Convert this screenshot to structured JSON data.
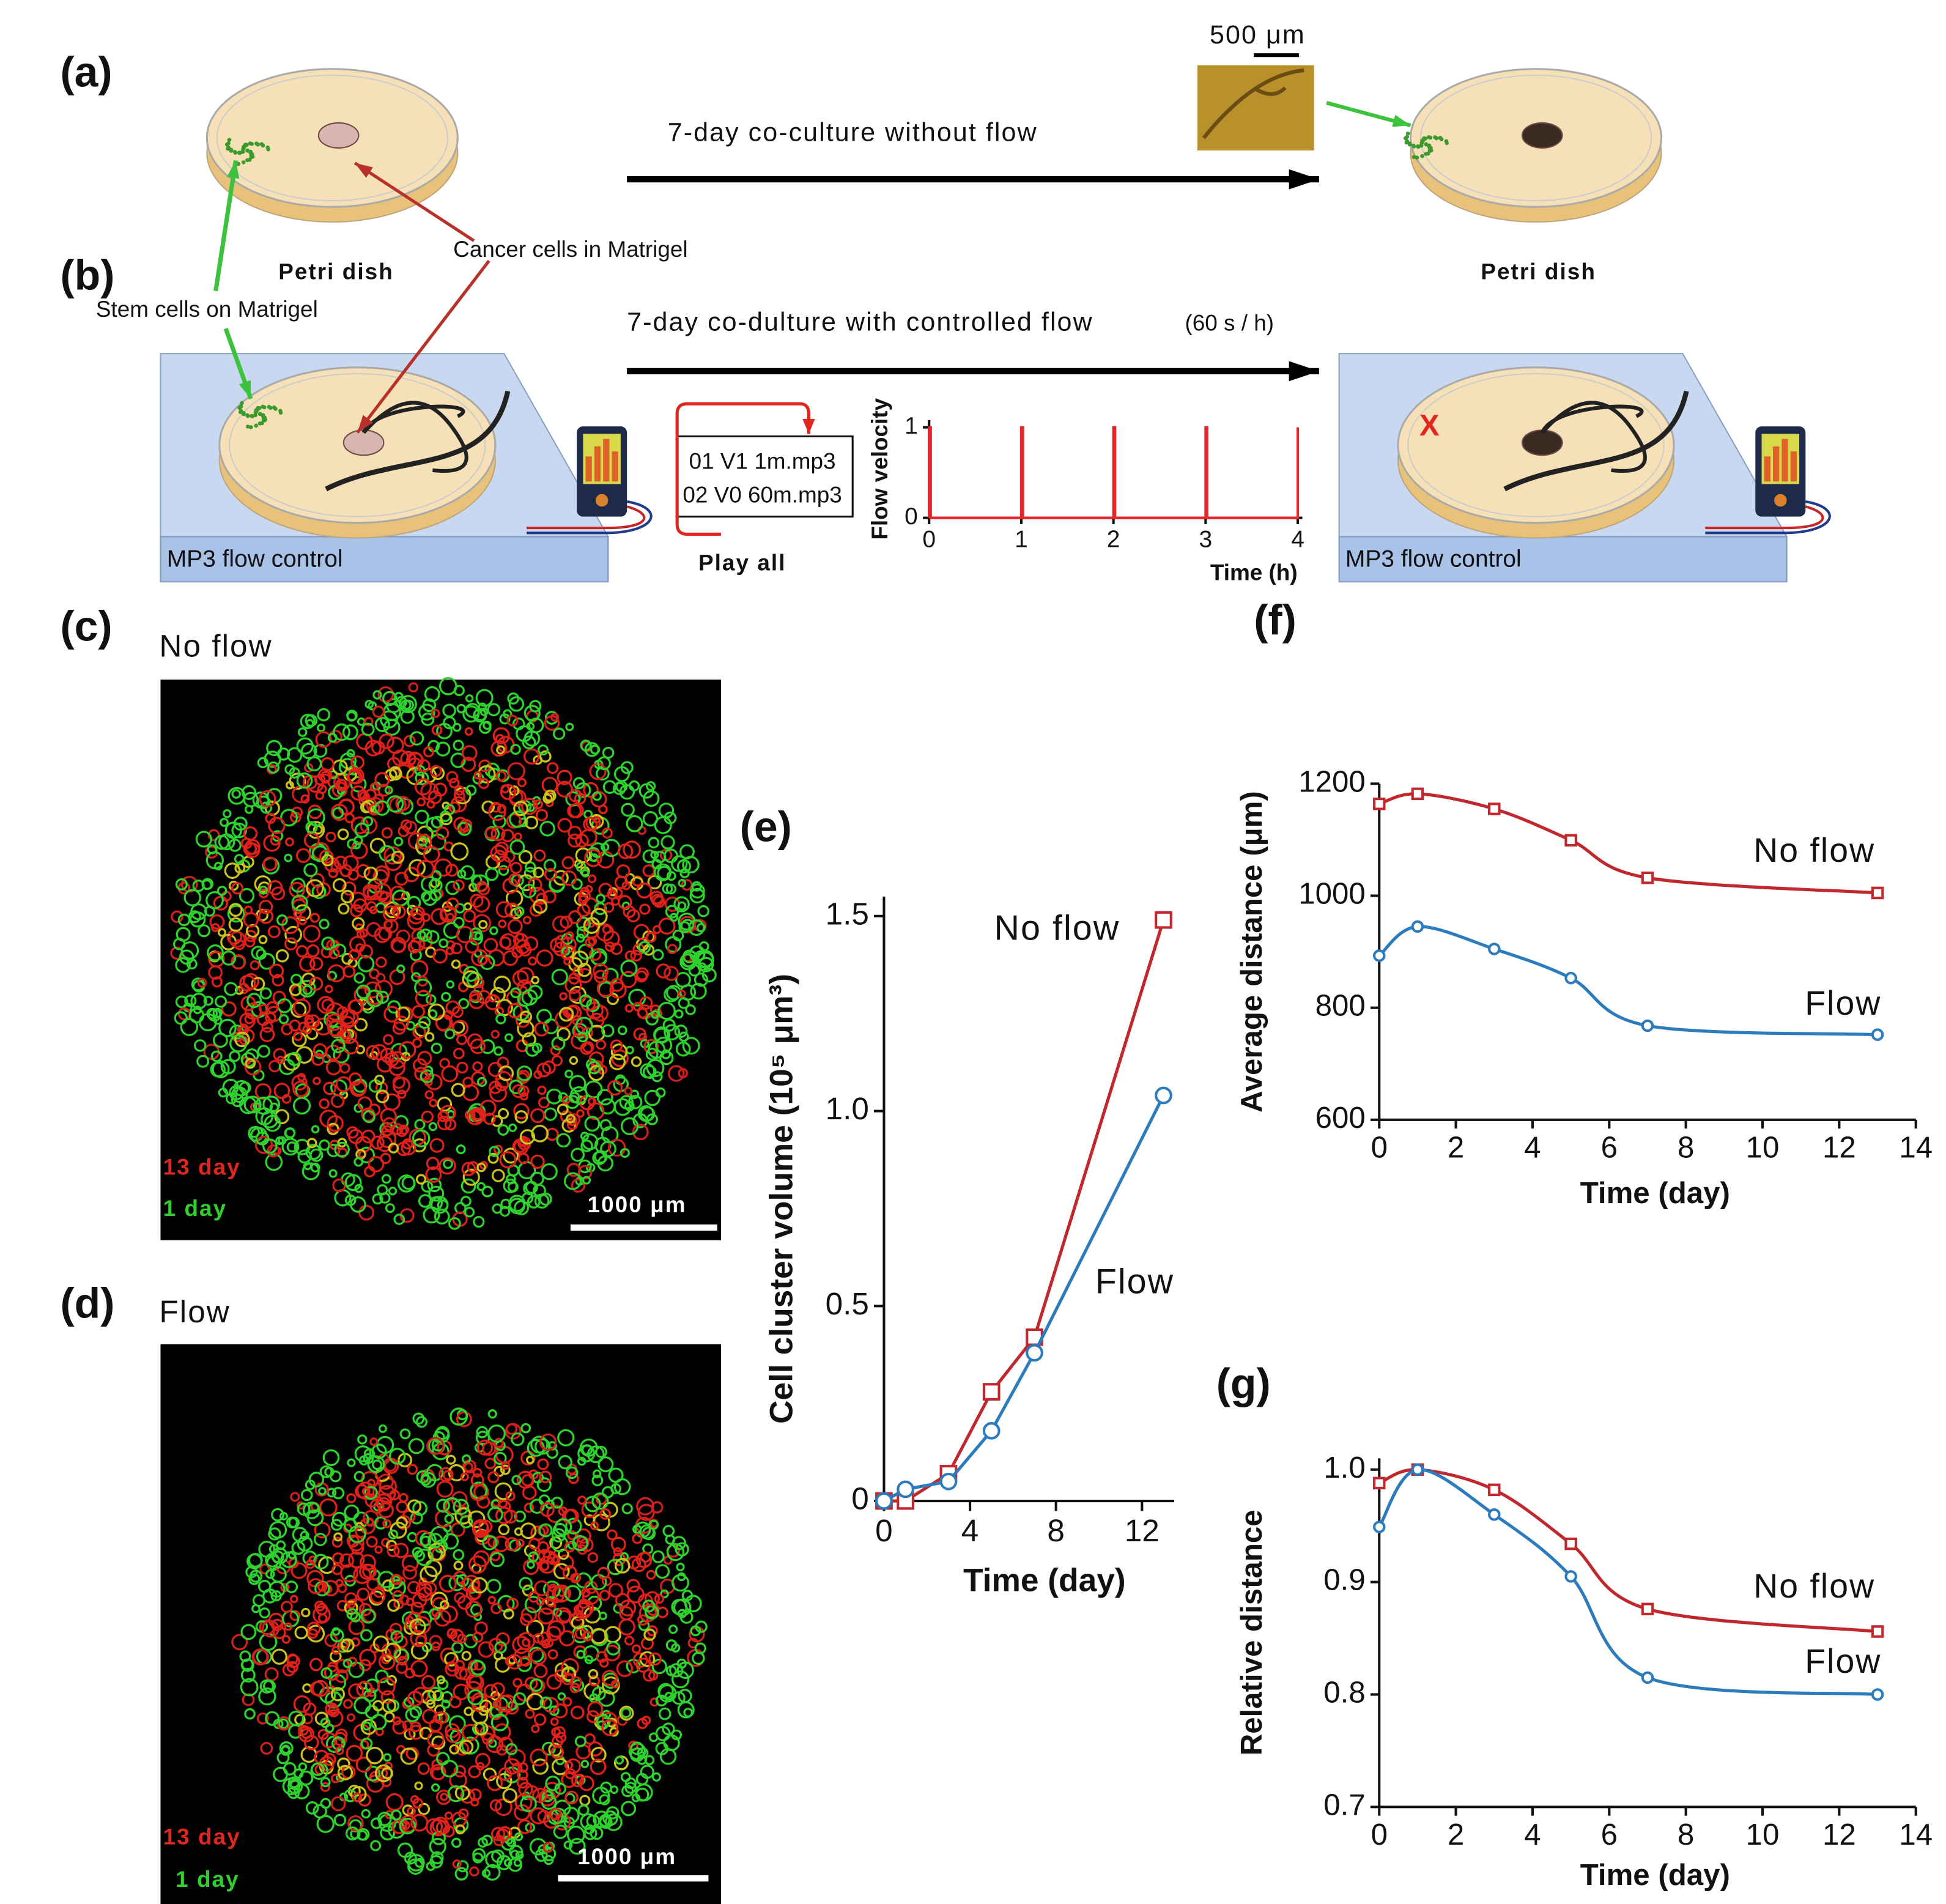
{
  "figure": {
    "panel_labels": [
      "(a)",
      "(b)",
      "(c)",
      "(d)",
      "(e)",
      "(f)",
      "(g)"
    ],
    "a": {
      "arrow_label": "7-day co-culture without flow",
      "dish_left": "Petri dish",
      "dish_right": "Petri dish",
      "scale_bar": "500 μm"
    },
    "callouts": {
      "cancer": "Cancer cells in Matrigel",
      "stem": "Stem cells on Matrigel"
    },
    "b": {
      "arrow_label": "7-day co-dulture with controlled flow",
      "rate": "(60 s / h)",
      "playlist": [
        "01 V1   1m.mp3",
        "02 V0 60m.mp3"
      ],
      "play": "Play all",
      "device_left": "MP3 flow control",
      "device_right": "MP3 flow control",
      "removed": "X"
    },
    "c": {
      "title": "No flow",
      "late": "13 day",
      "early": "1 day",
      "scale_bar": "1000 μm"
    },
    "d": {
      "title": "Flow",
      "late": "13 day",
      "early": "1 day",
      "scale_bar": "1000 μm"
    }
  },
  "chart_data": [
    {
      "type": "line",
      "xlabel": "Time (h)",
      "ylabel": "Flow velocity",
      "x": [
        0,
        0,
        0.017,
        0.017,
        1,
        1,
        1.017,
        1.017,
        2,
        2,
        2.017,
        2.017,
        3,
        3,
        3.017,
        3.017,
        4,
        4
      ],
      "series": [
        {
          "color": "#e8262a",
          "values": [
            0,
            1,
            1,
            0,
            0,
            1,
            1,
            0,
            0,
            1,
            1,
            0,
            0,
            1,
            1,
            0,
            0,
            1
          ]
        }
      ],
      "xlim": [
        0,
        4.05
      ],
      "ylim": [
        0,
        1.08
      ],
      "xticks": [
        0,
        1,
        2,
        3,
        4
      ],
      "yticks": [
        0,
        1
      ],
      "smooth": false
    },
    {
      "type": "line",
      "xlabel": "Time (day)",
      "ylabel": "Cell cluster volume (10⁵ μm³)",
      "x": [
        0,
        1,
        3,
        5,
        7,
        13
      ],
      "series": [
        {
          "name": "No flow",
          "color": "#c0282d",
          "marker": "square",
          "values": [
            0,
            0,
            0.07,
            0.28,
            0.42,
            1.49
          ]
        },
        {
          "name": "Flow",
          "color": "#2b7bbd",
          "marker": "circle",
          "values": [
            0,
            0.03,
            0.05,
            0.18,
            0.38,
            1.04
          ]
        }
      ],
      "xlim": [
        0,
        13.5
      ],
      "ylim": [
        0,
        1.55
      ],
      "xticks": [
        0,
        4,
        8,
        12
      ],
      "yticks": [
        0,
        0.5,
        {
          "value": 1,
          "label": "1.0"
        },
        1.5
      ],
      "smooth": false
    },
    {
      "type": "line",
      "xlabel": "Time (day)",
      "ylabel": "Average distance (μm)",
      "x": [
        0,
        1,
        3,
        5,
        7,
        13
      ],
      "series": [
        {
          "name": "No flow",
          "color": "#c0282d",
          "marker": "square",
          "values": [
            1164,
            1182,
            1155,
            1099,
            1032,
            1005
          ]
        },
        {
          "name": "Flow",
          "color": "#2b7bbd",
          "marker": "circle",
          "values": [
            893,
            945,
            905,
            853,
            768,
            752
          ]
        }
      ],
      "xlim": [
        0,
        14
      ],
      "ylim": [
        600,
        1200
      ],
      "xticks": [
        0,
        2,
        4,
        6,
        8,
        10,
        12,
        14
      ],
      "yticks": [
        600,
        800,
        1000,
        1200
      ],
      "smooth": true
    },
    {
      "type": "line",
      "xlabel": "Time (day)",
      "ylabel": "Relative distance",
      "x": [
        0,
        1,
        3,
        5,
        7,
        13
      ],
      "series": [
        {
          "name": "No flow",
          "color": "#c0282d",
          "marker": "square",
          "values": [
            0.988,
            1.0,
            0.982,
            0.934,
            0.876,
            0.856
          ]
        },
        {
          "name": "Flow",
          "color": "#2b7bbd",
          "marker": "circle",
          "values": [
            0.949,
            1.0,
            0.96,
            0.905,
            0.815,
            0.8
          ]
        }
      ],
      "xlim": [
        0,
        14
      ],
      "ylim": [
        0.7,
        1.01
      ],
      "xticks": [
        0,
        2,
        4,
        6,
        8,
        10,
        12,
        14
      ],
      "yticks": [
        0.7,
        0.8,
        0.9,
        {
          "value": 1,
          "label": "1.0"
        }
      ],
      "smooth": true
    }
  ]
}
